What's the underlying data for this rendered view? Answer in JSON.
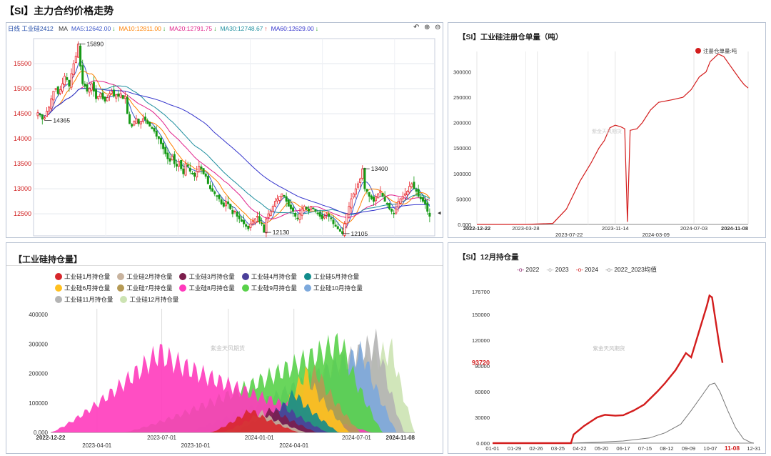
{
  "page": {
    "title": "【SI】主力合约价格走势"
  },
  "chart_data": [
    {
      "id": "price",
      "type": "candlestick",
      "title": "日线 工业硅2412",
      "ma_legend": [
        {
          "label": "MA",
          "color": "#333333"
        },
        {
          "label": "MA5:12642.00",
          "color": "#3a56c9"
        },
        {
          "label": "MA10:12811.00",
          "color": "#ff8000"
        },
        {
          "label": "MA20:12791.75",
          "color": "#e0208a"
        },
        {
          "label": "MA30:12748.67",
          "color": "#1f8f9f"
        },
        {
          "label": "MA60:12629.00",
          "color": "#3333cc"
        }
      ],
      "ma_arrows": [
        "↓",
        "↓",
        "↓",
        "↑",
        "↓"
      ],
      "y_ticks": [
        15500,
        15000,
        14500,
        14000,
        13500,
        13000,
        12500
      ],
      "ylim": [
        12060,
        16000
      ],
      "annotations": [
        {
          "text": "15890",
          "value": 15890,
          "index": 18
        },
        {
          "text": "14365",
          "value": 14365,
          "index": 3
        },
        {
          "text": "13400",
          "value": 13400,
          "index": 145
        },
        {
          "text": "12130",
          "value": 12130,
          "index": 101
        },
        {
          "text": "12105",
          "value": 12105,
          "index": 136
        }
      ],
      "closes": [
        14520,
        14480,
        14390,
        14420,
        14550,
        14630,
        14800,
        14950,
        15000,
        14900,
        14980,
        15100,
        15250,
        15180,
        15050,
        15300,
        15500,
        15650,
        15890,
        15450,
        15100,
        15050,
        14950,
        15000,
        15100,
        14950,
        14800,
        14850,
        14900,
        14800,
        14750,
        14820,
        14900,
        14950,
        14850,
        14880,
        14850,
        14900,
        14800,
        14850,
        14500,
        14300,
        14250,
        14350,
        14400,
        14300,
        14350,
        14400,
        14380,
        14300,
        14250,
        14200,
        14150,
        14050,
        14000,
        13900,
        13800,
        13700,
        13600,
        13550,
        13650,
        13500,
        13450,
        13550,
        13400,
        13300,
        13500,
        13450,
        13350,
        13300,
        13250,
        13350,
        13450,
        13400,
        13300,
        13250,
        13100,
        13000,
        12950,
        12900,
        12850,
        12800,
        12700,
        12650,
        12750,
        12700,
        12600,
        12500,
        12550,
        12450,
        12400,
        12350,
        12300,
        12250,
        12200,
        12300,
        12350,
        12400,
        12450,
        12350,
        12300,
        12130,
        12400,
        12500,
        12550,
        12650,
        12750,
        12800,
        12850,
        12900,
        12850,
        12750,
        12650,
        12600,
        12550,
        12450,
        12400,
        12500,
        12600,
        12650,
        12600,
        12550,
        12650,
        12600,
        12550,
        12500,
        12450,
        12400,
        12450,
        12500,
        12450,
        12400,
        12300,
        12250,
        12200,
        12150,
        12105,
        12300,
        12500,
        12650,
        12800,
        12900,
        13000,
        13100,
        13200,
        13400,
        13000,
        12950,
        12850,
        12800,
        12750,
        12850,
        12900,
        12950,
        12850,
        12750,
        12700,
        12600,
        12550,
        12500,
        12600,
        12750,
        12800,
        12850,
        12900,
        12950,
        13050,
        13100,
        13000,
        12950,
        12850,
        12800,
        12750,
        12700,
        12550,
        12450
      ]
    },
    {
      "id": "warrant",
      "type": "line",
      "title": "【SI】工业硅注册仓单量（吨）",
      "legend": "注册仓单量:吨",
      "y_ticks": [
        0,
        50000,
        100000,
        150000,
        200000,
        250000,
        300000
      ],
      "y_tick_labels": [
        "0.000",
        "50000",
        "100000",
        "150000",
        "200000",
        "250000",
        "300000"
      ],
      "ylim": [
        0,
        340000
      ],
      "x_ticks_top": [
        "2022-12-22",
        "2023-03-28",
        "2023-11-14",
        "2024-07-03",
        "2024-11-08"
      ],
      "x_ticks_bottom": [
        "2023-07-22",
        "2024-03-09"
      ],
      "watermark": "紫金天风期货",
      "points": [
        [
          0,
          0
        ],
        [
          0.18,
          0
        ],
        [
          0.28,
          2000
        ],
        [
          0.33,
          30000
        ],
        [
          0.38,
          85000
        ],
        [
          0.42,
          120000
        ],
        [
          0.45,
          150000
        ],
        [
          0.47,
          165000
        ],
        [
          0.49,
          190000
        ],
        [
          0.51,
          195000
        ],
        [
          0.53,
          192000
        ],
        [
          0.545,
          188000
        ],
        [
          0.555,
          5000
        ],
        [
          0.565,
          185000
        ],
        [
          0.59,
          188000
        ],
        [
          0.61,
          200000
        ],
        [
          0.64,
          225000
        ],
        [
          0.67,
          240000
        ],
        [
          0.72,
          245000
        ],
        [
          0.76,
          250000
        ],
        [
          0.79,
          265000
        ],
        [
          0.82,
          290000
        ],
        [
          0.845,
          300000
        ],
        [
          0.86,
          320000
        ],
        [
          0.89,
          335000
        ],
        [
          0.91,
          330000
        ],
        [
          0.93,
          315000
        ],
        [
          0.95,
          300000
        ],
        [
          0.97,
          285000
        ],
        [
          0.985,
          275000
        ],
        [
          1,
          268000
        ]
      ]
    },
    {
      "id": "holding",
      "type": "area",
      "title": "工业硅持仓量",
      "y_ticks": [
        0,
        100000,
        200000,
        300000,
        400000
      ],
      "y_tick_labels": [
        "0.000",
        "100000",
        "200000",
        "300000",
        "400000"
      ],
      "ylim": [
        0,
        420000
      ],
      "x_ticks_top": [
        "2022-12-22",
        "2023-07-01",
        "2024-01-01",
        "2024-07-01",
        "2024-11-08"
      ],
      "x_ticks_bottom": [
        "2023-04-01",
        "2023-10-01",
        "2024-04-01"
      ],
      "watermark": "紫金天风期货",
      "series": [
        {
          "name": "工业硅1月持仓量",
          "color": "#d7262b",
          "start": 0.44,
          "peak": 0.55,
          "end": 0.68,
          "height": 90000
        },
        {
          "name": "工业硅2月持仓量",
          "color": "#c8b39e",
          "start": 0.47,
          "peak": 0.58,
          "end": 0.7,
          "height": 80000
        },
        {
          "name": "工业硅3月持仓量",
          "color": "#7b1d4c",
          "start": 0.5,
          "peak": 0.61,
          "end": 0.73,
          "height": 95000
        },
        {
          "name": "工业硅4月持仓量",
          "color": "#4b3f9a",
          "start": 0.53,
          "peak": 0.64,
          "end": 0.76,
          "height": 110000
        },
        {
          "name": "工业硅5月持仓量",
          "color": "#118c8c",
          "start": 0.56,
          "peak": 0.67,
          "end": 0.79,
          "height": 160000
        },
        {
          "name": "工业硅6月持仓量",
          "color": "#ffc020",
          "start": 0.59,
          "peak": 0.7,
          "end": 0.82,
          "height": 240000
        },
        {
          "name": "工业硅7月持仓量",
          "color": "#b59a55",
          "start": 0.62,
          "peak": 0.73,
          "end": 0.85,
          "height": 250000
        },
        {
          "name": "工业硅8月持仓量",
          "color": "#ff3bbd",
          "start": 0.0,
          "peak": 0.3,
          "end": 0.88,
          "height": 320000
        },
        {
          "name": "工业硅9月持仓量",
          "color": "#59d14a",
          "start": 0.2,
          "peak": 0.8,
          "end": 0.91,
          "height": 360000
        },
        {
          "name": "工业硅10月持仓量",
          "color": "#7da9dc",
          "start": 0.36,
          "peak": 0.86,
          "end": 0.95,
          "height": 320000
        },
        {
          "name": "工业硅11月持仓量",
          "color": "#b4b4b4",
          "start": 0.4,
          "peak": 0.9,
          "end": 0.97,
          "height": 360000
        },
        {
          "name": "工业硅12月持仓量",
          "color": "#cce3b2",
          "start": 0.43,
          "peak": 0.94,
          "end": 1.0,
          "height": 330000
        }
      ]
    },
    {
      "id": "december",
      "type": "line",
      "title": "【SI】12月持仓量",
      "legend": [
        {
          "label": "2022",
          "color": "#8a1f6a"
        },
        {
          "label": "2023",
          "color": "#aaaaaa"
        },
        {
          "label": "2024",
          "color": "#d42020"
        },
        {
          "label": "2022_2023均值",
          "color": "#888888"
        }
      ],
      "y_ticks": [
        0,
        30000,
        60000,
        90000,
        120000,
        150000,
        176700
      ],
      "y_tick_labels": [
        "0.000",
        "30000",
        "60000",
        "90000",
        "120000",
        "150000",
        "176700"
      ],
      "ylim": [
        0,
        176700
      ],
      "highlight": {
        "label": "93720",
        "value": 93720
      },
      "x_ticks": [
        "01-01",
        "01-29",
        "02-26",
        "03-25",
        "04-22",
        "05-20",
        "06-17",
        "07-15",
        "08-12",
        "09-09",
        "10-07",
        "11-08",
        "12-31"
      ],
      "x_highlight": "11-08",
      "watermark": "紫金天风期货",
      "series_2024": [
        [
          0,
          0
        ],
        [
          0.3,
          0
        ],
        [
          0.31,
          10000
        ],
        [
          0.35,
          20000
        ],
        [
          0.4,
          30000
        ],
        [
          0.43,
          33000
        ],
        [
          0.47,
          32000
        ],
        [
          0.5,
          32500
        ],
        [
          0.54,
          38000
        ],
        [
          0.58,
          45000
        ],
        [
          0.63,
          60000
        ],
        [
          0.66,
          70000
        ],
        [
          0.7,
          85000
        ],
        [
          0.72,
          95000
        ],
        [
          0.74,
          105000
        ],
        [
          0.76,
          100000
        ],
        [
          0.78,
          120000
        ],
        [
          0.8,
          140000
        ],
        [
          0.82,
          160000
        ],
        [
          0.83,
          172000
        ],
        [
          0.84,
          170000
        ],
        [
          0.855,
          140000
        ],
        [
          0.87,
          110000
        ],
        [
          0.88,
          93720
        ]
      ],
      "series_avg": [
        [
          0,
          0
        ],
        [
          0.3,
          0
        ],
        [
          0.4,
          1000
        ],
        [
          0.5,
          2500
        ],
        [
          0.6,
          6000
        ],
        [
          0.66,
          12000
        ],
        [
          0.72,
          22000
        ],
        [
          0.76,
          38000
        ],
        [
          0.8,
          55000
        ],
        [
          0.83,
          68000
        ],
        [
          0.85,
          70000
        ],
        [
          0.87,
          60000
        ],
        [
          0.9,
          38000
        ],
        [
          0.93,
          18000
        ],
        [
          0.96,
          5000
        ],
        [
          0.99,
          500
        ],
        [
          1,
          0
        ]
      ]
    }
  ]
}
